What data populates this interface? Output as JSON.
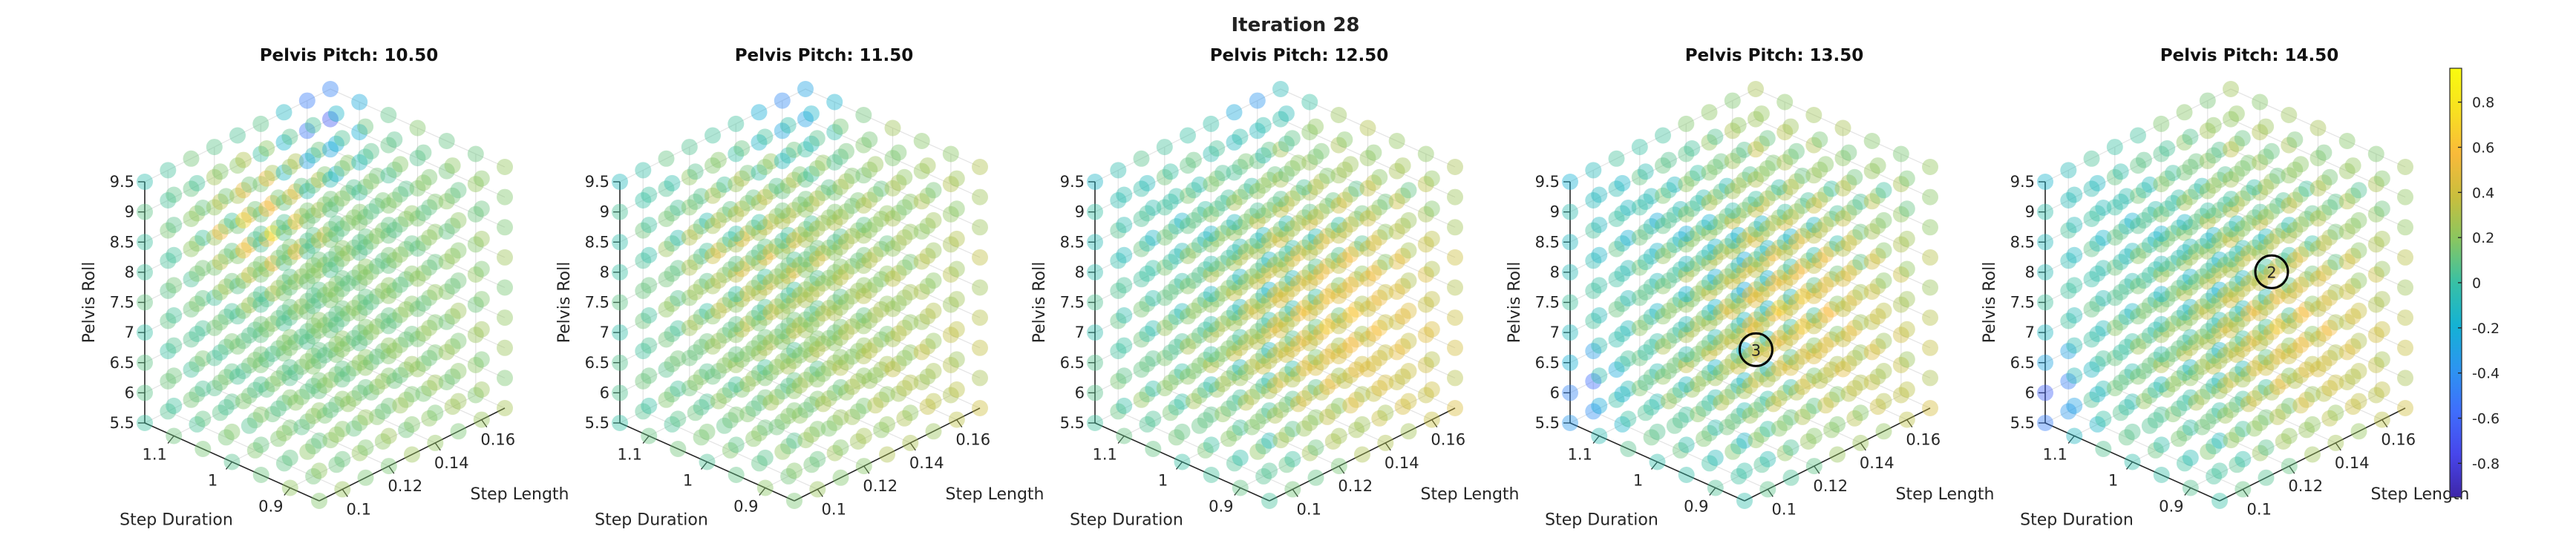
{
  "figure_title": "Iteration 28",
  "colors": {
    "colormap": [
      "#3e26a8",
      "#4746eb",
      "#3f6efc",
      "#2c95f0",
      "#14b2d4",
      "#38c0a5",
      "#88c661",
      "#c9be3d",
      "#f9ba3a",
      "#f8e021",
      "#f9fb0e"
    ],
    "axes": "#262626",
    "grid": "#e3e3e3",
    "marker": "#000000"
  },
  "colorbar": {
    "min": -0.95,
    "max": 0.95,
    "ticks": [
      "0.8",
      "0.6",
      "0.4",
      "0.2",
      "0",
      "-0.2",
      "-0.4",
      "-0.6",
      "-0.8"
    ]
  },
  "chart_data": [
    {
      "type": "scatter3d",
      "title": "Pelvis Pitch: 10.50",
      "xlabel": "Step Length",
      "ylabel": "Step Duration",
      "zlabel": "Pelvis Roll",
      "xticks": [
        "0.1",
        "0.12",
        "0.14",
        "0.16"
      ],
      "yticks": [
        "0.9",
        "1",
        "1.1"
      ],
      "zticks": [
        "5.5",
        "6",
        "6.5",
        "7",
        "7.5",
        "8",
        "8.5",
        "9",
        "9.5"
      ],
      "xlim": [
        0.09,
        0.17
      ],
      "ylim": [
        0.85,
        1.15
      ],
      "zlim": [
        5.5,
        9.5
      ],
      "grid": [
        9,
        7,
        9
      ],
      "value_field": {
        "base": 0.12,
        "ax": 0.05,
        "ay": -0.1,
        "az": -0.05,
        "hot_center": [
          0.4,
          0.75,
          0.75
        ],
        "hot_amp": 0.75,
        "hot_width": 0.16,
        "cold_center": [
          0.95,
          1.0,
          0.9
        ],
        "cold_amp": -0.75,
        "cold_width": 0.14
      },
      "highlight": null
    },
    {
      "type": "scatter3d",
      "title": "Pelvis Pitch: 11.50",
      "xlabel": "Step Length",
      "ylabel": "Step Duration",
      "zlabel": "Pelvis Roll",
      "xticks": [
        "0.1",
        "0.12",
        "0.14",
        "0.16"
      ],
      "yticks": [
        "0.9",
        "1",
        "1.1"
      ],
      "zticks": [
        "5.5",
        "6",
        "6.5",
        "7",
        "7.5",
        "8",
        "8.5",
        "9",
        "9.5"
      ],
      "xlim": [
        0.09,
        0.17
      ],
      "ylim": [
        0.85,
        1.15
      ],
      "zlim": [
        5.5,
        9.5
      ],
      "grid": [
        9,
        7,
        9
      ],
      "value_field": {
        "base": 0.15,
        "ax": 0.2,
        "ay": -0.1,
        "az": -0.1,
        "hot_center": [
          0.5,
          0.8,
          0.6
        ],
        "hot_amp": 0.35,
        "hot_width": 0.25,
        "cold_center": [
          0.9,
          1.0,
          0.95
        ],
        "cold_amp": -0.55,
        "cold_width": 0.18
      },
      "highlight": null
    },
    {
      "type": "scatter3d",
      "title": "Pelvis Pitch: 12.50",
      "xlabel": "Step Length",
      "ylabel": "Step Duration",
      "zlabel": "Pelvis Roll",
      "xticks": [
        "0.1",
        "0.12",
        "0.14",
        "0.16"
      ],
      "yticks": [
        "0.9",
        "1",
        "1.1"
      ],
      "zticks": [
        "5.5",
        "6",
        "6.5",
        "7",
        "7.5",
        "8",
        "8.5",
        "9",
        "9.5"
      ],
      "xlim": [
        0.09,
        0.17
      ],
      "ylim": [
        0.85,
        1.15
      ],
      "zlim": [
        5.5,
        9.5
      ],
      "grid": [
        9,
        7,
        9
      ],
      "value_field": {
        "base": 0.15,
        "ax": 0.35,
        "ay": 0.05,
        "az": -0.15,
        "hot_center": [
          0.6,
          0.3,
          0.45
        ],
        "hot_amp": 0.45,
        "hot_width": 0.25,
        "cold_center": [
          0.85,
          1.0,
          1.0
        ],
        "cold_amp": -0.55,
        "cold_width": 0.16
      },
      "highlight": null
    },
    {
      "type": "scatter3d",
      "title": "Pelvis Pitch: 13.50",
      "xlabel": "Step Length",
      "ylabel": "Step Duration",
      "zlabel": "Pelvis Roll",
      "xticks": [
        "0.1",
        "0.12",
        "0.14",
        "0.16"
      ],
      "yticks": [
        "0.9",
        "1",
        "1.1"
      ],
      "zticks": [
        "5.5",
        "6",
        "6.5",
        "7",
        "7.5",
        "8",
        "8.5",
        "9",
        "9.5"
      ],
      "xlim": [
        0.09,
        0.17
      ],
      "ylim": [
        0.85,
        1.15
      ],
      "zlim": [
        5.5,
        9.5
      ],
      "grid": [
        9,
        7,
        9
      ],
      "value_field": {
        "base": 0.12,
        "ax": 0.4,
        "ay": 0.1,
        "az": -0.2,
        "hot_center": [
          0.55,
          0.35,
          0.5
        ],
        "hot_amp": 0.55,
        "hot_width": 0.22,
        "cold_center": [
          0.1,
          1.0,
          0.1
        ],
        "cold_amp": -0.75,
        "cold_width": 0.12
      },
      "highlight": {
        "label": "3",
        "x": 0.12,
        "y": 0.95,
        "z": 7.0
      }
    },
    {
      "type": "scatter3d",
      "title": "Pelvis Pitch: 14.50",
      "xlabel": "Step Length",
      "ylabel": "Step Duration",
      "zlabel": "Pelvis Roll",
      "xticks": [
        "0.1",
        "0.12",
        "0.14",
        "0.16"
      ],
      "yticks": [
        "0.9",
        "1",
        "1.1"
      ],
      "zticks": [
        "5.5",
        "6",
        "6.5",
        "7",
        "7.5",
        "8",
        "8.5",
        "9",
        "9.5"
      ],
      "xlim": [
        0.09,
        0.17
      ],
      "ylim": [
        0.85,
        1.15
      ],
      "zlim": [
        5.5,
        9.5
      ],
      "grid": [
        9,
        7,
        9
      ],
      "value_field": {
        "base": 0.12,
        "ax": 0.35,
        "ay": 0.05,
        "az": -0.15,
        "hot_center": [
          0.6,
          0.3,
          0.4
        ],
        "hot_amp": 0.45,
        "hot_width": 0.22,
        "cold_center": [
          0.05,
          1.0,
          0.1
        ],
        "cold_amp": -0.75,
        "cold_width": 0.12
      },
      "highlight": {
        "label": "2",
        "x": 0.15,
        "y": 1.0,
        "z": 7.5
      }
    }
  ]
}
